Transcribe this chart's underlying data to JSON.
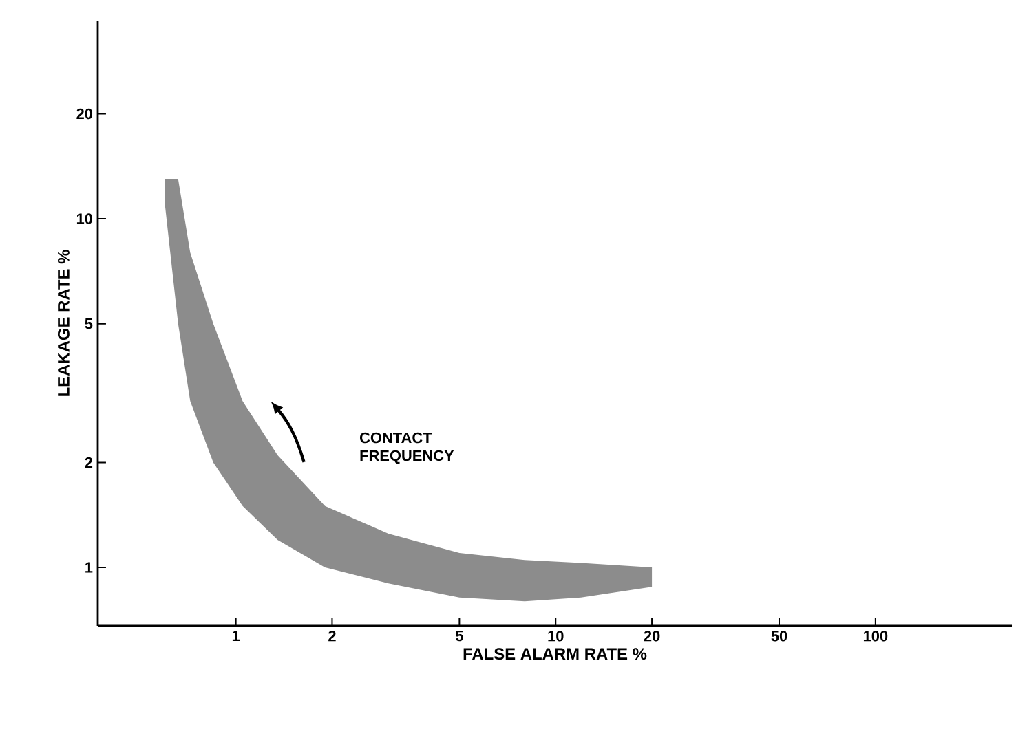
{
  "chart_data": {
    "type": "area",
    "xlabel": "FALSE ALARM RATE %",
    "ylabel": "LEAKAGE RATE %",
    "log": "xy",
    "xlim": [
      0.37,
      267
    ],
    "ylim": [
      0.68,
      37
    ],
    "xticks": [
      1,
      2,
      5,
      10,
      20,
      50,
      100
    ],
    "yticks": [
      1,
      2,
      5,
      10,
      20
    ],
    "annotations": [
      "CONTACT FREQUENCY"
    ],
    "series": [
      {
        "color": "#8c8c8c",
        "x": [
          0.6,
          0.66,
          0.72,
          0.85,
          1.05,
          1.35,
          1.9,
          3,
          5,
          8,
          12,
          20
        ],
        "values": [
          null,
          null,
          null,
          null,
          null,
          null,
          null,
          null,
          null,
          null,
          null,
          null
        ],
        "upper": [
          13,
          13,
          8,
          5,
          3,
          2.1,
          1.5,
          1.25,
          1.1,
          1.05,
          1.03,
          1.0
        ],
        "lower": [
          11,
          5,
          3,
          2,
          1.5,
          1.2,
          1.0,
          0.9,
          0.82,
          0.8,
          0.82,
          0.88
        ]
      }
    ]
  }
}
